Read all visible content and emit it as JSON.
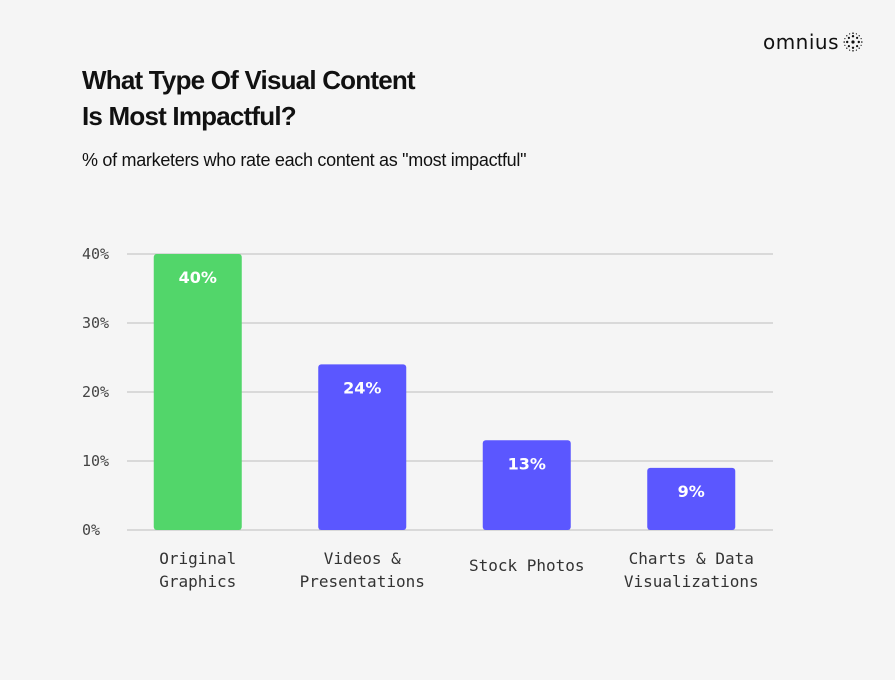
{
  "brand": {
    "name": "omnius",
    "logo_icon": "dotted-sphere-icon"
  },
  "header": {
    "title_line1": "What Type Of Visual Content",
    "title_line2": "Is Most Impactful?",
    "subtitle": "% of marketers who rate each content as \"most impactful\""
  },
  "colors": {
    "highlight": "#52d66a",
    "bar": "#5b57ff",
    "grid": "#bdbdbd",
    "background": "#f5f5f5"
  },
  "chart_data": {
    "type": "bar",
    "title": "What Type Of Visual Content Is Most Impactful?",
    "subtitle": "% of marketers who rate each content as \"most impactful\"",
    "categories": [
      [
        "Original",
        "Graphics"
      ],
      [
        "Videos &",
        "Presentations"
      ],
      [
        "Stock Photos"
      ],
      [
        "Charts & Data",
        "Visualizations"
      ]
    ],
    "values": [
      40,
      24,
      13,
      9
    ],
    "data_labels": [
      "40%",
      "24%",
      "13%",
      "9%"
    ],
    "highlighted_index": 0,
    "ylim": [
      0,
      40
    ],
    "yticks": [
      0,
      10,
      20,
      30,
      40
    ],
    "ytick_labels": [
      "0%",
      "10%",
      "20%",
      "30%",
      "40%"
    ],
    "grid": true,
    "legend": "none",
    "xlabel": "",
    "ylabel": ""
  }
}
